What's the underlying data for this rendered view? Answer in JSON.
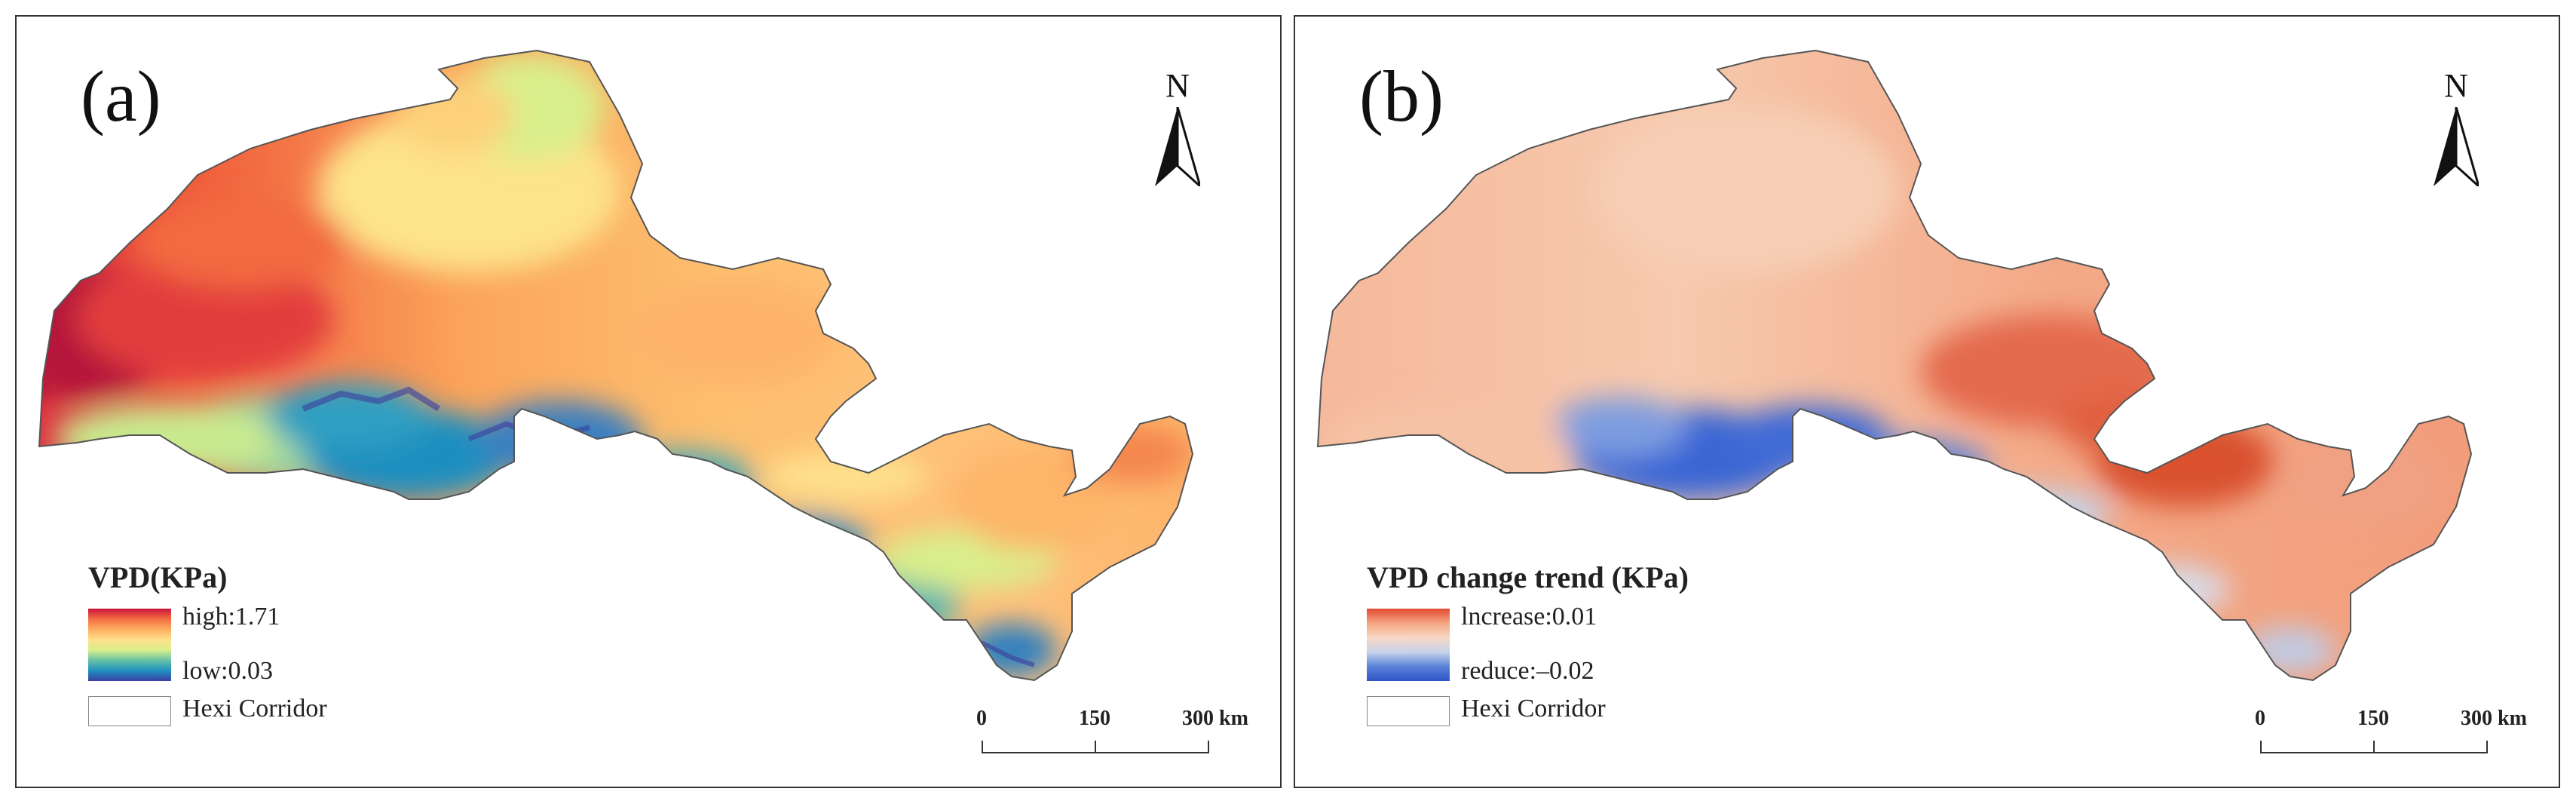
{
  "panels": [
    {
      "id": "a",
      "letter": "(a)",
      "north_label": "N",
      "legend": {
        "title": "VPD(KPa)",
        "high_label": "high:1.71",
        "low_label": "low:0.03",
        "ramp_colors": [
          "#c8143a",
          "#f46d43",
          "#fdae61",
          "#fee08b",
          "#d9ef8b",
          "#66c2a5",
          "#1f8fc0",
          "#3a3fa0"
        ],
        "corridor_label": "Hexi Corridor"
      },
      "scale": {
        "ticks": [
          "0",
          "150",
          "300 km"
        ]
      }
    },
    {
      "id": "b",
      "letter": "(b)",
      "north_label": "N",
      "legend": {
        "title": "VPD change trend (KPa)",
        "high_label": "lncrease:0.01",
        "low_label": "reduce:–0.02",
        "ramp_colors": [
          "#e34a33",
          "#f4a582",
          "#f7d7c4",
          "#c6d3ea",
          "#5a82d8",
          "#2f55c8"
        ],
        "corridor_label": "Hexi Corridor"
      },
      "scale": {
        "ticks": [
          "0",
          "150",
          "300 km"
        ]
      }
    }
  ]
}
